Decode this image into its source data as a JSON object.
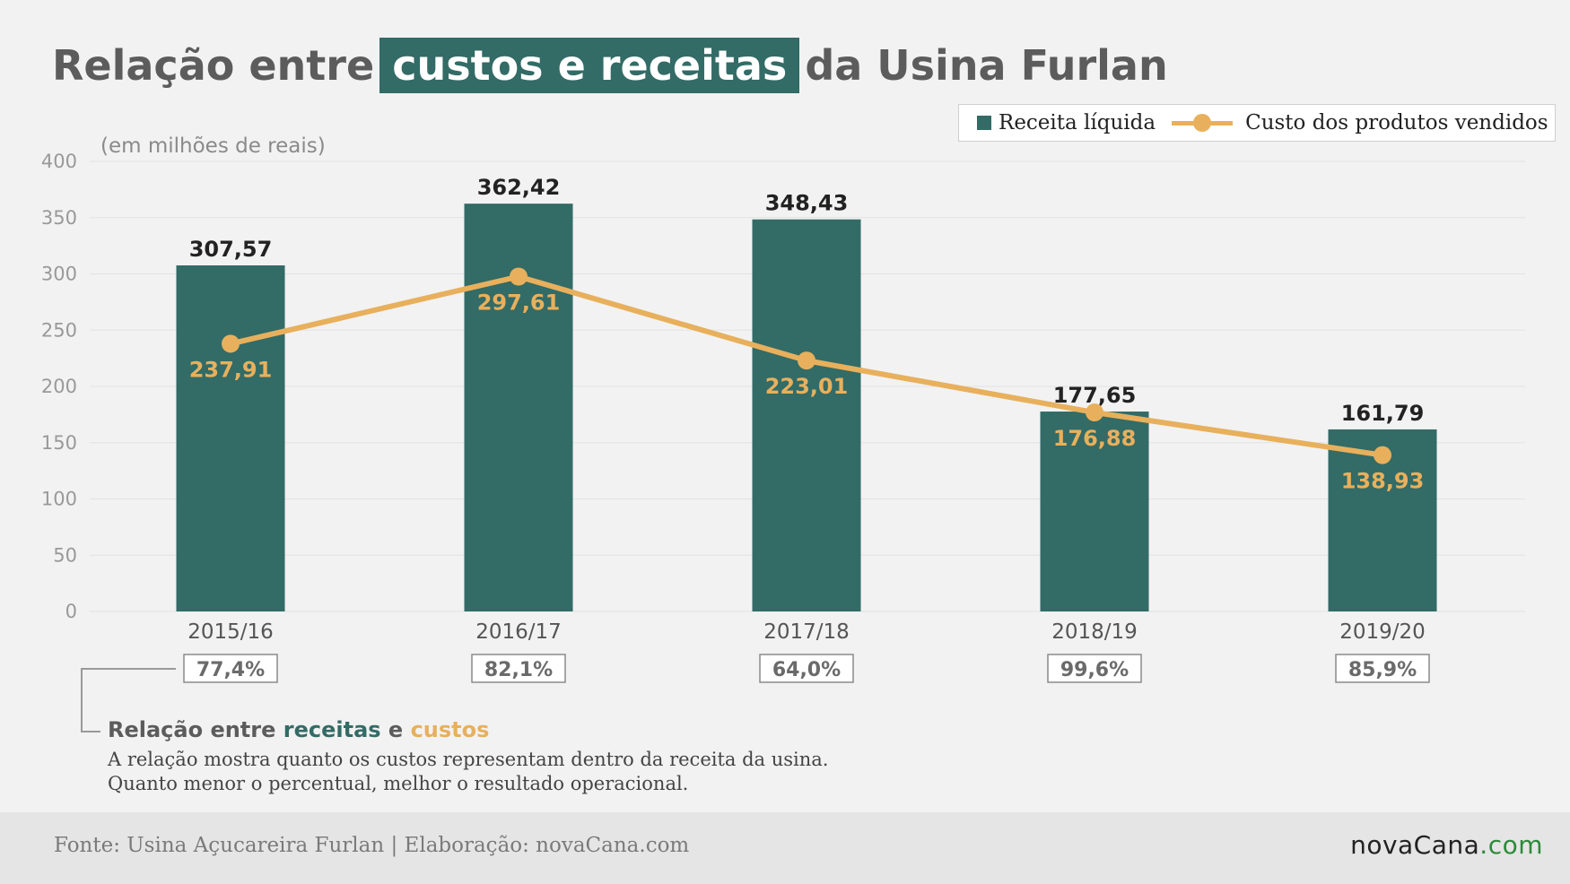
{
  "title": {
    "before": "Relação entre",
    "highlight": "custos e receitas",
    "after": "da Usina Furlan"
  },
  "unit_label": "(em milhões de reais)",
  "legend": {
    "bar_label": "Receita líquida",
    "line_label": "Custo dos produtos vendidos"
  },
  "colors": {
    "bar": "#336b66",
    "line": "#e8b05c",
    "text_dark": "#222222",
    "axis_text": "#999999"
  },
  "chart_data": {
    "type": "bar",
    "categories": [
      "2015/16",
      "2016/17",
      "2017/18",
      "2018/19",
      "2019/20"
    ],
    "series": [
      {
        "name": "Receita líquida",
        "kind": "bar",
        "values": [
          307.57,
          362.42,
          348.43,
          177.65,
          161.79
        ],
        "labels": [
          "307,57",
          "362,42",
          "348,43",
          "177,65",
          "161,79"
        ]
      },
      {
        "name": "Custo dos produtos vendidos",
        "kind": "line",
        "values": [
          237.91,
          297.61,
          223.01,
          176.88,
          138.93
        ],
        "labels": [
          "237,91",
          "297,61",
          "223,01",
          "176,88",
          "138,93"
        ]
      }
    ],
    "ratios": [
      "77,4%",
      "82,1%",
      "64,0%",
      "99,6%",
      "85,9%"
    ],
    "ylim": [
      0,
      400
    ],
    "yticks": [
      0,
      50,
      100,
      150,
      200,
      250,
      300,
      350,
      400
    ],
    "grid": true,
    "legend_position": "top-right"
  },
  "note": {
    "title_prefix": "Relação entre",
    "title_green": "receitas",
    "title_mid": "e",
    "title_orange": "custos",
    "line1": "A relação mostra quanto os custos representam dentro da receita da usina.",
    "line2": "Quanto menor o percentual, melhor o resultado operacional."
  },
  "footer": {
    "source": "Fonte: Usina Açucareira Furlan | Elaboração: novaCana.com",
    "logo_name": "novaCana",
    "logo_domain": ".com"
  }
}
